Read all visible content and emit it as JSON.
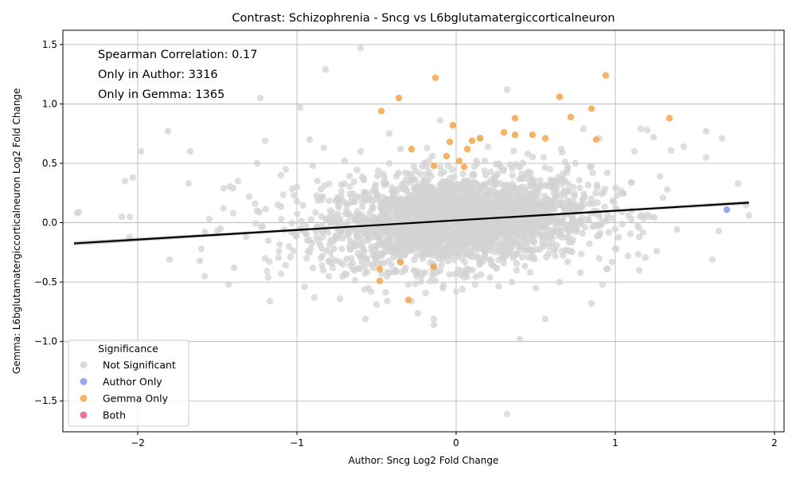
{
  "chart_data": {
    "type": "scatter",
    "title": "Contrast: Schizophrenia - Sncg vs L6bglutamatergiccorticalneuron",
    "xlabel": "Author: Sncg Log2 Fold Change",
    "ylabel": "Gemma: L6bglutamatergiccorticalneuron Log2 Fold Change",
    "xlim": [
      -2.47,
      2.06
    ],
    "ylim": [
      -1.76,
      1.62
    ],
    "xticks": [
      -2,
      -1,
      0,
      1,
      2
    ],
    "yticks": [
      -1.5,
      -1.0,
      -0.5,
      0.0,
      0.5,
      1.0,
      1.5
    ],
    "xtick_labels": [
      "−2",
      "−1",
      "0",
      "1",
      "2"
    ],
    "ytick_labels": [
      "−1.5",
      "−1.0",
      "−0.5",
      "0.0",
      "0.5",
      "1.0",
      "1.5"
    ],
    "grid": true,
    "annotations": [
      "Spearman Correlation: 0.17",
      "Only in Author: 3316",
      "Only in Gemma: 1365"
    ],
    "legend": {
      "title": "Significance",
      "placement": "lower-left",
      "entries": [
        {
          "label": "Not Significant",
          "color": "#d3d3d3"
        },
        {
          "label": "Author Only",
          "color": "#7f9ae6"
        },
        {
          "label": "Gemma Only",
          "color": "#f5a54a"
        },
        {
          "label": "Both",
          "color": "#e0607e"
        }
      ]
    },
    "regression": {
      "slope": 0.081,
      "intercept": 0.02,
      "x_range": [
        -2.4,
        1.84
      ],
      "color": "#000000"
    },
    "series": [
      {
        "name": "Not Significant",
        "color": "#d3d3d3",
        "points": [
          [
            -2.38,
            0.08
          ],
          [
            -2.37,
            0.09
          ],
          [
            -2.1,
            0.05
          ],
          [
            -2.05,
            0.05
          ],
          [
            -2.05,
            -0.12
          ],
          [
            -1.98,
            0.6
          ],
          [
            -2.08,
            0.35
          ],
          [
            -2.03,
            0.38
          ],
          [
            -1.81,
            0.77
          ],
          [
            -1.8,
            -0.31
          ],
          [
            -1.67,
            0.6
          ],
          [
            -1.68,
            0.33
          ],
          [
            -1.61,
            -0.32
          ],
          [
            -1.6,
            -0.22
          ],
          [
            -1.58,
            -0.45
          ],
          [
            -1.5,
            -0.07
          ],
          [
            -1.43,
            -0.52
          ],
          [
            -1.46,
            0.29
          ],
          [
            -1.37,
            0.35
          ],
          [
            -1.4,
            0.29
          ],
          [
            -1.3,
            0.22
          ],
          [
            -1.25,
            0.5
          ],
          [
            -1.23,
            1.05
          ],
          [
            -1.2,
            0.69
          ],
          [
            -1.18,
            -0.46
          ],
          [
            -1.17,
            -0.66
          ],
          [
            -1.1,
            -0.43
          ],
          [
            -1.07,
            0.45
          ],
          [
            -1.0,
            0.3
          ],
          [
            -0.98,
            0.97
          ],
          [
            -0.92,
            0.7
          ],
          [
            -0.89,
            -0.63
          ],
          [
            -0.82,
            1.29
          ],
          [
            -0.75,
            -0.32
          ],
          [
            -0.73,
            -0.64
          ],
          [
            -0.6,
            1.47
          ],
          [
            -0.57,
            -0.81
          ],
          [
            -0.5,
            -0.69
          ],
          [
            -0.42,
            0.75
          ],
          [
            -0.28,
            -0.66
          ],
          [
            -0.14,
            -0.86
          ],
          [
            -0.14,
            -0.81
          ],
          [
            -0.1,
            0.86
          ],
          [
            0.32,
            1.12
          ],
          [
            0.32,
            -1.61
          ],
          [
            0.4,
            -0.98
          ],
          [
            0.56,
            -0.81
          ],
          [
            0.66,
            0.62
          ],
          [
            0.8,
            0.79
          ],
          [
            0.85,
            -0.68
          ],
          [
            0.9,
            0.71
          ],
          [
            0.98,
            -0.33
          ],
          [
            1.12,
            0.6
          ],
          [
            1.16,
            0.79
          ],
          [
            1.2,
            0.78
          ],
          [
            1.24,
            0.72
          ],
          [
            1.28,
            0.39
          ],
          [
            1.35,
            0.61
          ],
          [
            1.43,
            0.64
          ],
          [
            1.57,
            0.77
          ],
          [
            1.57,
            0.55
          ],
          [
            1.61,
            -0.31
          ],
          [
            1.65,
            -0.07
          ],
          [
            1.67,
            0.71
          ],
          [
            1.77,
            0.33
          ],
          [
            1.82,
            0.15
          ],
          [
            1.84,
            0.06
          ],
          [
            1.3,
            0.21
          ],
          [
            1.26,
            -0.24
          ],
          [
            1.22,
            0.05
          ],
          [
            1.15,
            -0.4
          ],
          [
            1.08,
            -0.28
          ],
          [
            1.1,
            0.34
          ],
          [
            0.85,
            0.2
          ],
          [
            0.92,
            -0.52
          ],
          [
            0.78,
            -0.42
          ],
          [
            0.7,
            0.45
          ],
          [
            0.6,
            0.3
          ],
          [
            0.5,
            -0.55
          ],
          [
            0.45,
            0.58
          ],
          [
            0.38,
            -0.4
          ],
          [
            0.3,
            0.45
          ],
          [
            0.25,
            -0.38
          ],
          [
            0.18,
            0.52
          ],
          [
            0.1,
            0.4
          ],
          [
            0.05,
            -0.46
          ],
          [
            -0.05,
            0.48
          ],
          [
            -0.12,
            -0.42
          ],
          [
            -0.2,
            0.5
          ],
          [
            -0.25,
            -0.45
          ],
          [
            -0.32,
            0.42
          ],
          [
            -0.38,
            -0.4
          ],
          [
            -0.45,
            0.38
          ],
          [
            -0.52,
            -0.38
          ],
          [
            -0.58,
            0.36
          ],
          [
            -0.65,
            -0.34
          ],
          [
            -0.72,
            0.32
          ],
          [
            -0.78,
            -0.3
          ],
          [
            -0.85,
            0.28
          ],
          [
            -0.92,
            -0.25
          ],
          [
            -1.0,
            0.18
          ],
          [
            -1.05,
            -0.2
          ],
          [
            -1.12,
            0.15
          ],
          [
            -1.18,
            -0.15
          ],
          [
            -1.25,
            0.1
          ],
          [
            -1.32,
            -0.12
          ],
          [
            -1.4,
            0.08
          ],
          [
            -1.48,
            -0.05
          ],
          [
            -1.55,
            0.03
          ],
          [
            -0.6,
            0.6
          ],
          [
            -0.35,
            0.62
          ],
          [
            0.2,
            0.64
          ],
          [
            0.55,
            0.55
          ],
          [
            -0.7,
            0.52
          ],
          [
            0.75,
            0.5
          ],
          [
            -0.9,
            0.48
          ],
          [
            0.95,
            0.42
          ],
          [
            -1.1,
            0.4
          ],
          [
            1.05,
            0.25
          ],
          [
            -1.2,
            -0.3
          ],
          [
            1.15,
            -0.12
          ],
          [
            -0.55,
            -0.55
          ],
          [
            0.65,
            -0.5
          ],
          [
            0.0,
            -0.58
          ],
          [
            -0.3,
            -0.52
          ],
          [
            0.35,
            -0.5
          ],
          [
            -0.8,
            -0.45
          ],
          [
            0.9,
            -0.3
          ],
          [
            -0.15,
            0.56
          ],
          [
            0.12,
            -0.52
          ],
          [
            -0.42,
            0.5
          ],
          [
            0.42,
            0.5
          ]
        ]
      },
      {
        "name": "Author Only",
        "color": "#7f9ae6",
        "points": [
          [
            1.7,
            0.11
          ]
        ]
      },
      {
        "name": "Gemma Only",
        "color": "#f5a54a",
        "points": [
          [
            -0.47,
            0.94
          ],
          [
            -0.36,
            1.05
          ],
          [
            -0.13,
            1.22
          ],
          [
            0.94,
            1.24
          ],
          [
            0.65,
            1.06
          ],
          [
            0.85,
            0.96
          ],
          [
            0.72,
            0.89
          ],
          [
            1.34,
            0.88
          ],
          [
            0.37,
            0.88
          ],
          [
            -0.02,
            0.82
          ],
          [
            0.3,
            0.76
          ],
          [
            0.37,
            0.74
          ],
          [
            0.48,
            0.74
          ],
          [
            0.56,
            0.71
          ],
          [
            0.88,
            0.7
          ],
          [
            0.15,
            0.71
          ],
          [
            0.1,
            0.69
          ],
          [
            -0.04,
            0.68
          ],
          [
            -0.28,
            0.62
          ],
          [
            0.07,
            0.62
          ],
          [
            -0.06,
            0.56
          ],
          [
            0.02,
            0.52
          ],
          [
            -0.14,
            0.48
          ],
          [
            0.05,
            0.47
          ],
          [
            -0.48,
            -0.39
          ],
          [
            -0.48,
            -0.49
          ],
          [
            -0.35,
            -0.33
          ],
          [
            -0.14,
            -0.37
          ],
          [
            -0.3,
            -0.65
          ]
        ]
      },
      {
        "name": "Both",
        "color": "#e0607e",
        "points": []
      }
    ]
  }
}
